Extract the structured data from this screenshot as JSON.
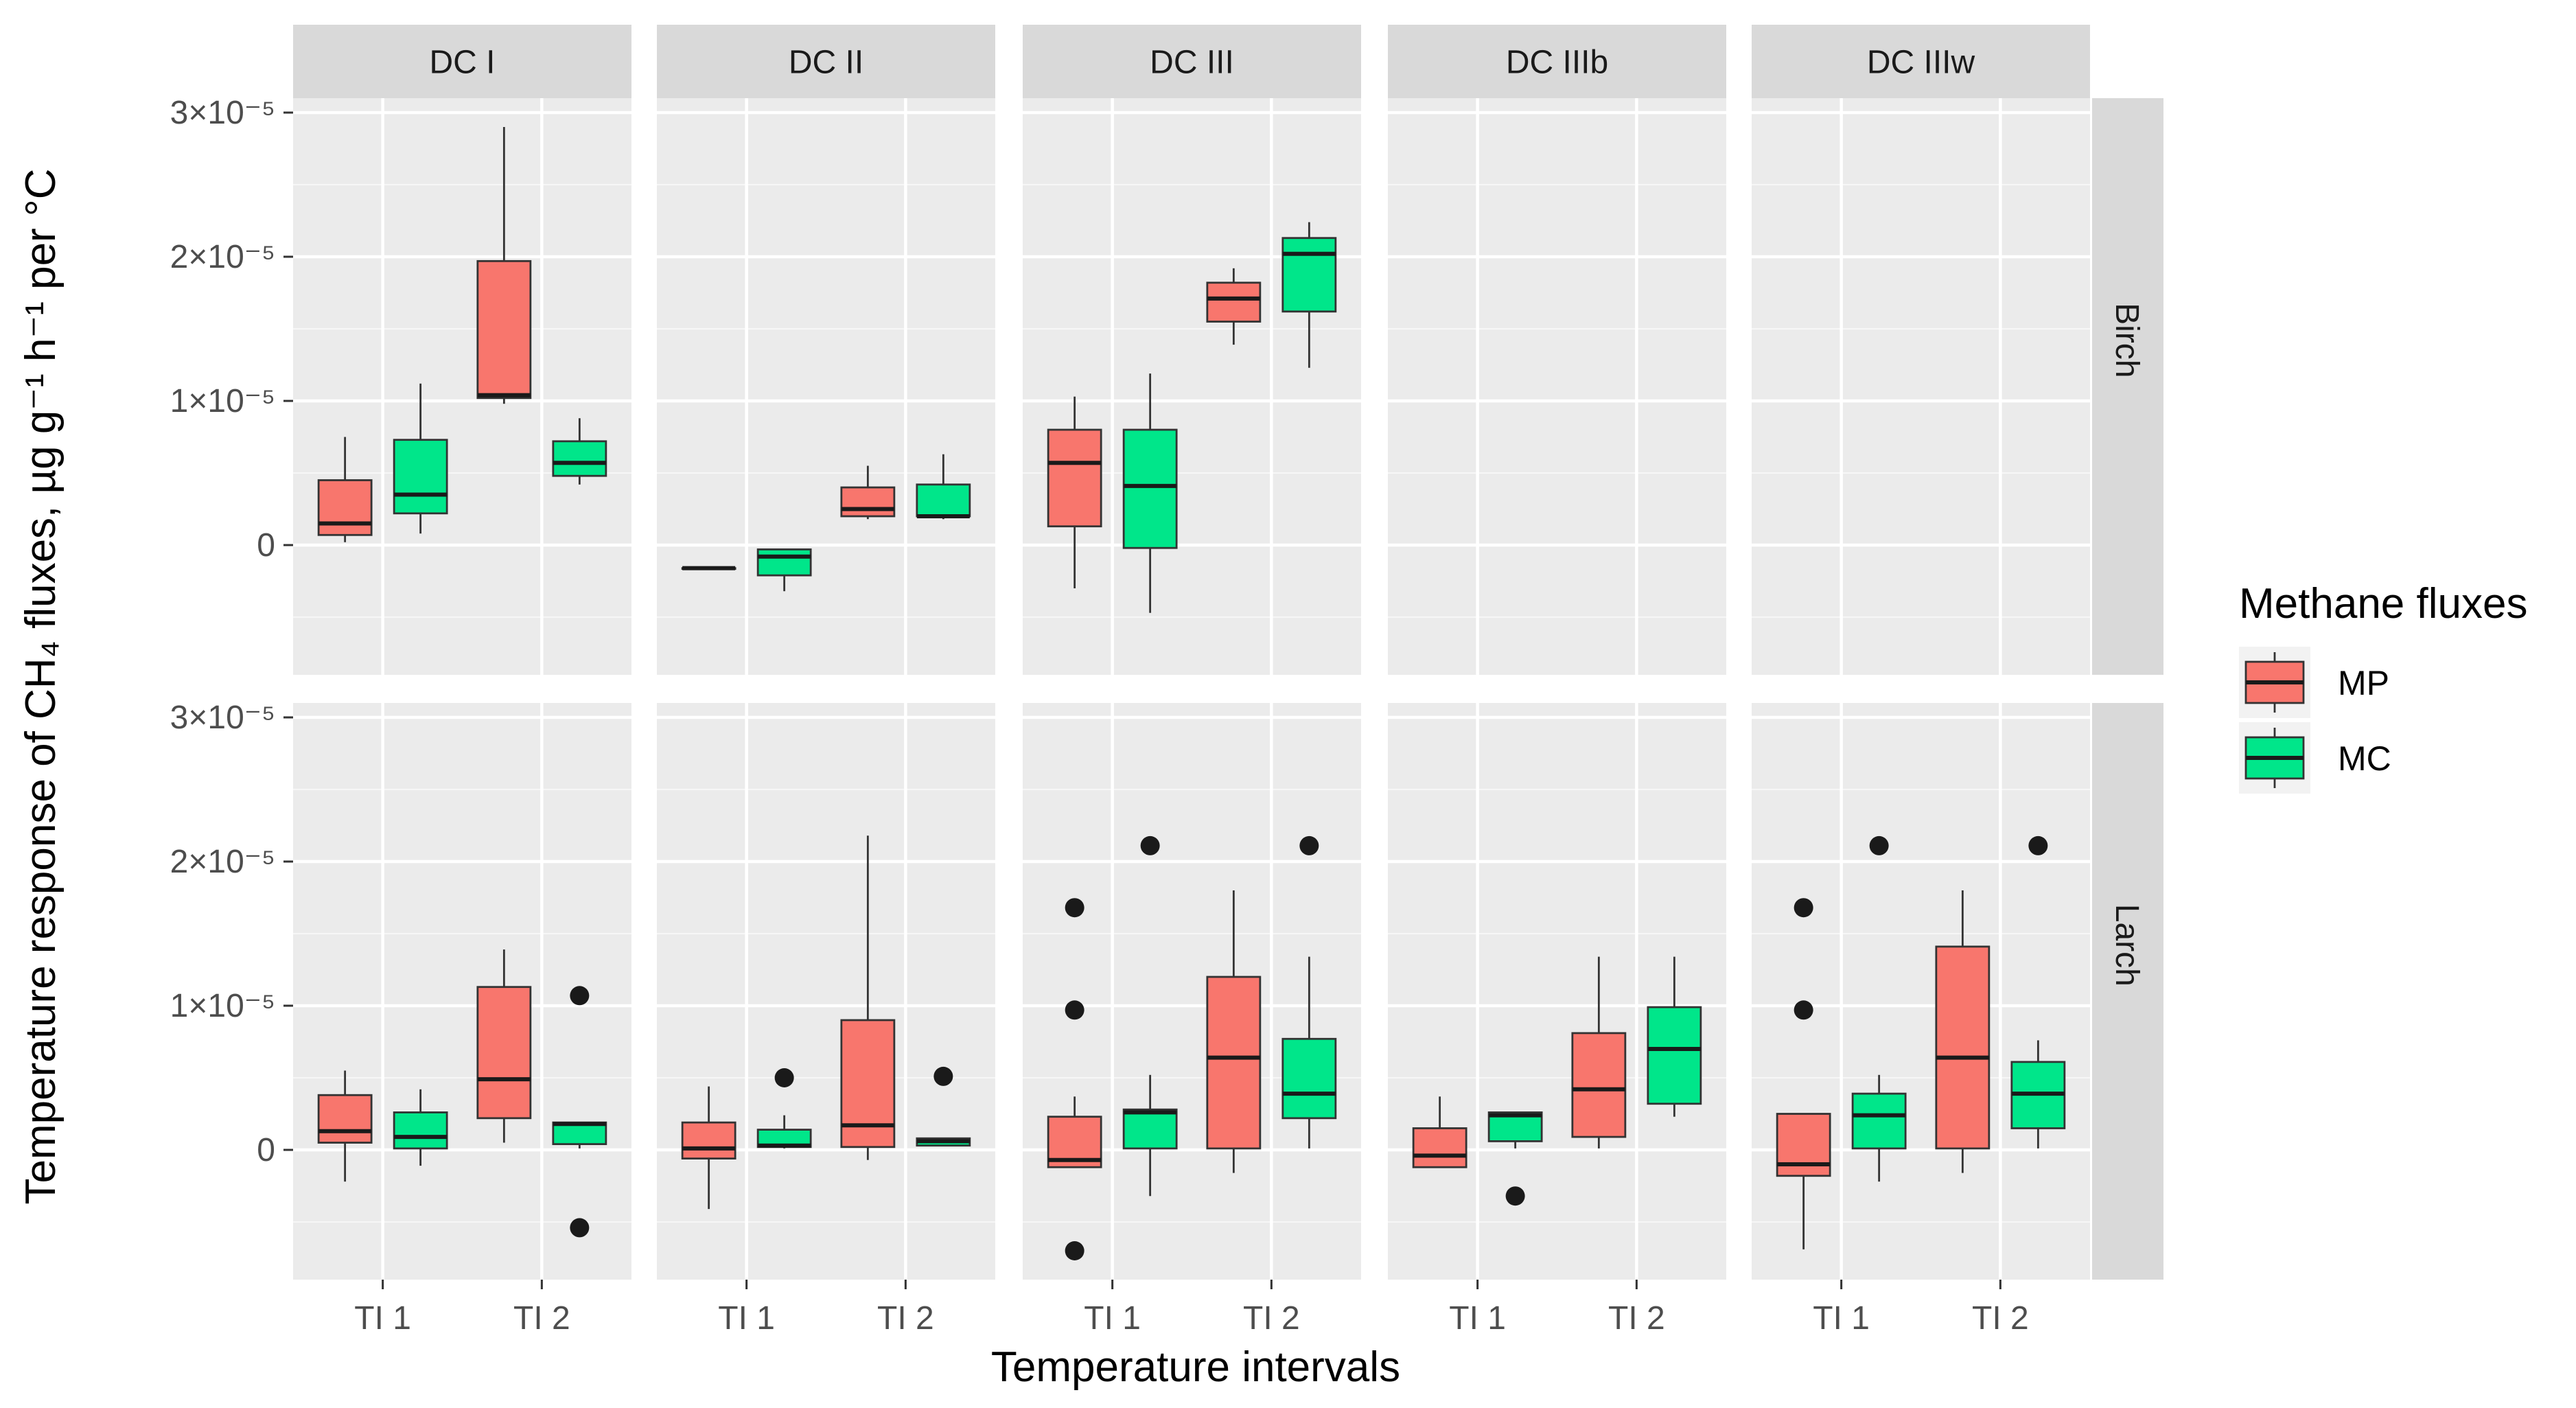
{
  "chart_data": {
    "type": "box",
    "facet_columns": [
      "DC I",
      "DC II",
      "DC III",
      "DC IIIb",
      "DC IIIw"
    ],
    "facet_rows": [
      "Birch",
      "Larch"
    ],
    "categories": [
      "TI 1",
      "TI 2"
    ],
    "xlabel": "Temperature intervals",
    "ylabel": "Temperature response of CH₄ fluxes, µg g⁻¹ h⁻¹ per °C",
    "ylim": [
      -9e-06,
      3.1e-05
    ],
    "y_ticks": [
      {
        "value": 0,
        "label": "0"
      },
      {
        "value": 1e-05,
        "label": "1×10⁻⁵"
      },
      {
        "value": 2e-05,
        "label": "2×10⁻⁵"
      },
      {
        "value": 3e-05,
        "label": "3×10⁻⁵"
      }
    ],
    "legend": {
      "title": "Methane fluxes",
      "entries": [
        {
          "name": "MP",
          "color": "#f8766d"
        },
        {
          "name": "MC",
          "color": "#00e68a"
        }
      ]
    },
    "series": [
      {
        "name": "MP",
        "color": "#f8766d"
      },
      {
        "name": "MC",
        "color": "#00e68a"
      }
    ],
    "panels": [
      {
        "row": "Birch",
        "col": "DC I",
        "boxes": [
          {
            "category": "TI 1",
            "series": "MP",
            "min": 2e-07,
            "q1": 7e-07,
            "median": 1.5e-06,
            "q3": 4.5e-06,
            "max": 7.5e-06,
            "outliers": []
          },
          {
            "category": "TI 1",
            "series": "MC",
            "min": 8e-07,
            "q1": 2.2e-06,
            "median": 3.5e-06,
            "q3": 7.3e-06,
            "max": 1.12e-05,
            "outliers": []
          },
          {
            "category": "TI 2",
            "series": "MP",
            "min": 9.8e-06,
            "q1": 1.02e-05,
            "median": 1.04e-05,
            "q3": 1.97e-05,
            "max": 2.9e-05,
            "outliers": []
          },
          {
            "category": "TI 2",
            "series": "MC",
            "min": 4.2e-06,
            "q1": 4.8e-06,
            "median": 5.7e-06,
            "q3": 7.2e-06,
            "max": 8.8e-06,
            "outliers": []
          }
        ]
      },
      {
        "row": "Birch",
        "col": "DC II",
        "boxes": [
          {
            "category": "TI 1",
            "series": "MP",
            "min": -1.6e-06,
            "q1": -1.6e-06,
            "median": -1.6e-06,
            "q3": -1.6e-06,
            "max": -1.6e-06,
            "outliers": []
          },
          {
            "category": "TI 1",
            "series": "MC",
            "min": -3.2e-06,
            "q1": -2.1e-06,
            "median": -8e-07,
            "q3": -3e-07,
            "max": -3e-07,
            "outliers": []
          },
          {
            "category": "TI 2",
            "series": "MP",
            "min": 1.8e-06,
            "q1": 2e-06,
            "median": 2.5e-06,
            "q3": 4e-06,
            "max": 5.5e-06,
            "outliers": []
          },
          {
            "category": "TI 2",
            "series": "MC",
            "min": 1.8e-06,
            "q1": 2e-06,
            "median": 2e-06,
            "q3": 4.2e-06,
            "max": 6.3e-06,
            "outliers": []
          }
        ]
      },
      {
        "row": "Birch",
        "col": "DC III",
        "boxes": [
          {
            "category": "TI 1",
            "series": "MP",
            "min": -3e-06,
            "q1": 1.3e-06,
            "median": 5.7e-06,
            "q3": 8e-06,
            "max": 1.03e-05,
            "outliers": []
          },
          {
            "category": "TI 1",
            "series": "MC",
            "min": -4.7e-06,
            "q1": -2e-07,
            "median": 4.1e-06,
            "q3": 8e-06,
            "max": 1.19e-05,
            "outliers": []
          },
          {
            "category": "TI 2",
            "series": "MP",
            "min": 1.39e-05,
            "q1": 1.55e-05,
            "median": 1.71e-05,
            "q3": 1.82e-05,
            "max": 1.92e-05,
            "outliers": []
          },
          {
            "category": "TI 2",
            "series": "MC",
            "min": 1.23e-05,
            "q1": 1.62e-05,
            "median": 2.02e-05,
            "q3": 2.13e-05,
            "max": 2.24e-05,
            "outliers": []
          }
        ]
      },
      {
        "row": "Birch",
        "col": "DC IIIb",
        "boxes": []
      },
      {
        "row": "Birch",
        "col": "DC IIIw",
        "boxes": []
      },
      {
        "row": "Larch",
        "col": "DC I",
        "boxes": [
          {
            "category": "TI 1",
            "series": "MP",
            "min": -2.2e-06,
            "q1": 5e-07,
            "median": 1.3e-06,
            "q3": 3.8e-06,
            "max": 5.5e-06,
            "outliers": []
          },
          {
            "category": "TI 1",
            "series": "MC",
            "min": -1.1e-06,
            "q1": 1e-07,
            "median": 9e-07,
            "q3": 2.6e-06,
            "max": 4.2e-06,
            "outliers": []
          },
          {
            "category": "TI 2",
            "series": "MP",
            "min": 5e-07,
            "q1": 2.2e-06,
            "median": 4.9e-06,
            "q3": 1.13e-05,
            "max": 1.39e-05,
            "outliers": []
          },
          {
            "category": "TI 2",
            "series": "MC",
            "min": 1e-07,
            "q1": 4e-07,
            "median": 1.8e-06,
            "q3": 1.9e-06,
            "max": 1.9e-06,
            "outliers": [
              1.07e-05,
              -5.4e-06
            ]
          }
        ]
      },
      {
        "row": "Larch",
        "col": "DC II",
        "boxes": [
          {
            "category": "TI 1",
            "series": "MP",
            "min": -4.1e-06,
            "q1": -6e-07,
            "median": 1e-07,
            "q3": 1.9e-06,
            "max": 4.4e-06,
            "outliers": []
          },
          {
            "category": "TI 1",
            "series": "MC",
            "min": 1e-07,
            "q1": 2e-07,
            "median": 3e-07,
            "q3": 1.4e-06,
            "max": 2.4e-06,
            "outliers": [
              5e-06
            ]
          },
          {
            "category": "TI 2",
            "series": "MP",
            "min": -7e-07,
            "q1": 2e-07,
            "median": 1.7e-06,
            "q3": 9e-06,
            "max": 2.18e-05,
            "outliers": []
          },
          {
            "category": "TI 2",
            "series": "MC",
            "min": 3e-07,
            "q1": 3e-07,
            "median": 6e-07,
            "q3": 8e-07,
            "max": 8e-07,
            "outliers": [
              5.1e-06
            ]
          }
        ]
      },
      {
        "row": "Larch",
        "col": "DC III",
        "boxes": [
          {
            "category": "TI 1",
            "series": "MP",
            "min": -1.2e-06,
            "q1": -1.2e-06,
            "median": -7e-07,
            "q3": 2.3e-06,
            "max": 3.7e-06,
            "outliers": [
              1.68e-05,
              9.7e-06,
              -7e-06
            ]
          },
          {
            "category": "TI 1",
            "series": "MC",
            "min": -3.2e-06,
            "q1": 1e-07,
            "median": 2.6e-06,
            "q3": 2.8e-06,
            "max": 5.2e-06,
            "outliers": [
              2.11e-05
            ]
          },
          {
            "category": "TI 2",
            "series": "MP",
            "min": -1.6e-06,
            "q1": 1e-07,
            "median": 6.4e-06,
            "q3": 1.2e-05,
            "max": 1.8e-05,
            "outliers": []
          },
          {
            "category": "TI 2",
            "series": "MC",
            "min": 1e-07,
            "q1": 2.2e-06,
            "median": 3.9e-06,
            "q3": 7.7e-06,
            "max": 1.34e-05,
            "outliers": [
              2.11e-05
            ]
          }
        ]
      },
      {
        "row": "Larch",
        "col": "DC IIIb",
        "boxes": [
          {
            "category": "TI 1",
            "series": "MP",
            "min": -1.2e-06,
            "q1": -1.2e-06,
            "median": -4e-07,
            "q3": 1.5e-06,
            "max": 3.7e-06,
            "outliers": []
          },
          {
            "category": "TI 1",
            "series": "MC",
            "min": 1e-07,
            "q1": 6e-07,
            "median": 2.4e-06,
            "q3": 2.6e-06,
            "max": 2.6e-06,
            "outliers": [
              -3.2e-06
            ]
          },
          {
            "category": "TI 2",
            "series": "MP",
            "min": 1e-07,
            "q1": 9e-07,
            "median": 4.2e-06,
            "q3": 8.1e-06,
            "max": 1.34e-05,
            "outliers": []
          },
          {
            "category": "TI 2",
            "series": "MC",
            "min": 2.3e-06,
            "q1": 3.2e-06,
            "median": 7e-06,
            "q3": 9.9e-06,
            "max": 1.34e-05,
            "outliers": []
          }
        ]
      },
      {
        "row": "Larch",
        "col": "DC IIIw",
        "boxes": [
          {
            "category": "TI 1",
            "series": "MP",
            "min": -6.9e-06,
            "q1": -1.8e-06,
            "median": -1e-06,
            "q3": 2.5e-06,
            "max": 2.5e-06,
            "outliers": [
              1.68e-05,
              9.7e-06
            ]
          },
          {
            "category": "TI 1",
            "series": "MC",
            "min": -2.2e-06,
            "q1": 1e-07,
            "median": 2.4e-06,
            "q3": 3.9e-06,
            "max": 5.2e-06,
            "outliers": [
              2.11e-05
            ]
          },
          {
            "category": "TI 2",
            "series": "MP",
            "min": -1.6e-06,
            "q1": 1e-07,
            "median": 6.4e-06,
            "q3": 1.41e-05,
            "max": 1.8e-05,
            "outliers": []
          },
          {
            "category": "TI 2",
            "series": "MC",
            "min": 1e-07,
            "q1": 1.5e-06,
            "median": 3.9e-06,
            "q3": 6.1e-06,
            "max": 7.6e-06,
            "outliers": [
              2.11e-05
            ]
          }
        ]
      }
    ]
  }
}
